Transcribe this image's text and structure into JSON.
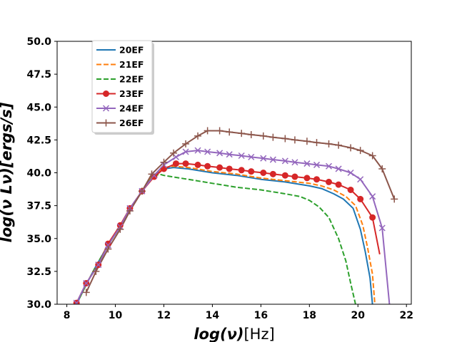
{
  "chart_data": {
    "type": "line",
    "title": "",
    "xlabel_math": "log(ν)",
    "xlabel_unit": "[Hz]",
    "ylabel_math": "log(ν Lν)",
    "ylabel_unit": "[ergs/s]",
    "xlim": [
      7.6,
      22.2
    ],
    "ylim": [
      30.0,
      50.0
    ],
    "xticks": [
      8,
      10,
      12,
      14,
      16,
      18,
      20,
      22
    ],
    "yticks": [
      30.0,
      32.5,
      35.0,
      37.5,
      40.0,
      42.5,
      45.0,
      47.5,
      50.0
    ],
    "xtick_labels": [
      "8",
      "10",
      "12",
      "14",
      "16",
      "18",
      "20",
      "22"
    ],
    "ytick_labels": [
      "30.0",
      "32.5",
      "35.0",
      "37.5",
      "40.0",
      "42.5",
      "45.0",
      "47.5",
      "50.0"
    ],
    "legend_position": "upper-left",
    "series": [
      {
        "name": "20EF",
        "color": "#1f77b4",
        "style": "solid",
        "marker": "none",
        "x": [
          8.4,
          8.8,
          9.2,
          9.7,
          10.2,
          10.6,
          11.1,
          11.5,
          12.0,
          12.4,
          13.0,
          14.0,
          15.0,
          16.0,
          17.0,
          18.0,
          18.5,
          19.0,
          19.4,
          19.8,
          20.1,
          20.3,
          20.5,
          20.6
        ],
        "y": [
          30.0,
          31.5,
          32.9,
          34.5,
          35.9,
          37.2,
          38.6,
          39.7,
          40.3,
          40.4,
          40.3,
          40.0,
          39.8,
          39.5,
          39.3,
          39.0,
          38.8,
          38.4,
          38.0,
          37.3,
          35.7,
          34.0,
          32.0,
          30.0
        ]
      },
      {
        "name": "21EF",
        "color": "#ff7f0e",
        "style": "dashed",
        "marker": "none",
        "x": [
          8.4,
          8.8,
          9.2,
          9.7,
          10.2,
          10.6,
          11.1,
          11.5,
          12.0,
          12.4,
          13.0,
          14.0,
          15.0,
          16.0,
          17.0,
          18.0,
          18.5,
          19.0,
          19.5,
          19.9,
          20.2,
          20.4,
          20.6,
          20.7
        ],
        "y": [
          30.0,
          31.5,
          32.9,
          34.5,
          35.9,
          37.2,
          38.6,
          39.7,
          40.4,
          40.5,
          40.4,
          40.1,
          39.9,
          39.6,
          39.4,
          39.2,
          39.0,
          38.7,
          38.2,
          37.5,
          36.0,
          34.3,
          32.3,
          30.0
        ]
      },
      {
        "name": "22EF",
        "color": "#2ca02c",
        "style": "dashed",
        "marker": "none",
        "x": [
          8.4,
          8.8,
          9.2,
          9.7,
          10.2,
          10.6,
          11.1,
          11.5,
          11.8,
          12.0,
          13.0,
          14.0,
          15.0,
          16.0,
          17.0,
          17.6,
          18.0,
          18.4,
          18.8,
          19.2,
          19.5,
          19.7,
          19.9
        ],
        "y": [
          30.0,
          31.5,
          32.9,
          34.5,
          35.9,
          37.2,
          38.6,
          39.6,
          39.9,
          39.8,
          39.5,
          39.2,
          38.9,
          38.7,
          38.4,
          38.2,
          37.9,
          37.4,
          36.6,
          35.0,
          33.3,
          31.6,
          30.0
        ]
      },
      {
        "name": "23EF",
        "color": "#d62728",
        "style": "solid",
        "marker": "circle",
        "x": [
          8.4,
          8.8,
          9.3,
          9.7,
          10.2,
          10.6,
          11.1,
          11.6,
          12.0,
          12.5,
          12.9,
          13.4,
          13.8,
          14.3,
          14.7,
          15.2,
          15.6,
          16.1,
          16.5,
          17.0,
          17.4,
          17.9,
          18.3,
          18.8,
          19.2,
          19.7,
          20.1,
          20.6,
          20.9
        ],
        "y": [
          30.1,
          31.6,
          33.0,
          34.6,
          36.0,
          37.3,
          38.6,
          39.7,
          40.3,
          40.7,
          40.7,
          40.6,
          40.5,
          40.4,
          40.3,
          40.2,
          40.1,
          40.0,
          39.9,
          39.8,
          39.7,
          39.6,
          39.5,
          39.3,
          39.1,
          38.7,
          38.0,
          36.6,
          33.8
        ],
        "marker_x": [
          8.4,
          8.8,
          9.3,
          9.7,
          10.2,
          10.6,
          11.1,
          11.6,
          12.0,
          12.5,
          12.9,
          13.4,
          13.8,
          14.3,
          14.7,
          15.2,
          15.6,
          16.1,
          16.5,
          17.0,
          17.4,
          17.9,
          18.3,
          18.8,
          19.2,
          19.7,
          20.1,
          20.6
        ],
        "marker_y": [
          30.1,
          31.6,
          33.0,
          34.6,
          36.0,
          37.3,
          38.6,
          39.7,
          40.3,
          40.7,
          40.7,
          40.6,
          40.5,
          40.4,
          40.3,
          40.2,
          40.1,
          40.0,
          39.9,
          39.8,
          39.7,
          39.6,
          39.5,
          39.3,
          39.1,
          38.7,
          38.0,
          36.6
        ]
      },
      {
        "name": "24EF",
        "color": "#9467bd",
        "style": "solid",
        "marker": "x",
        "x": [
          8.4,
          8.8,
          9.3,
          9.7,
          10.2,
          10.6,
          11.1,
          11.6,
          12.0,
          12.5,
          12.9,
          13.4,
          13.8,
          14.3,
          14.7,
          15.2,
          15.6,
          16.1,
          16.5,
          17.0,
          17.4,
          17.9,
          18.3,
          18.8,
          19.2,
          19.7,
          20.1,
          20.6,
          21.0,
          21.3
        ],
        "y": [
          30.1,
          31.6,
          33.0,
          34.5,
          35.9,
          37.3,
          38.6,
          39.8,
          40.6,
          41.2,
          41.6,
          41.7,
          41.6,
          41.5,
          41.4,
          41.3,
          41.2,
          41.1,
          41.0,
          40.9,
          40.8,
          40.7,
          40.6,
          40.5,
          40.3,
          40.0,
          39.5,
          38.2,
          35.8,
          30.0
        ],
        "marker_x": [
          8.4,
          8.8,
          9.3,
          9.7,
          10.2,
          10.6,
          11.1,
          11.6,
          12.0,
          12.5,
          12.9,
          13.4,
          13.8,
          14.3,
          14.7,
          15.2,
          15.6,
          16.1,
          16.5,
          17.0,
          17.4,
          17.9,
          18.3,
          18.8,
          19.2,
          19.7,
          20.1,
          20.6,
          21.0
        ],
        "marker_y": [
          30.1,
          31.6,
          33.0,
          34.5,
          35.9,
          37.3,
          38.6,
          39.8,
          40.6,
          41.2,
          41.6,
          41.7,
          41.6,
          41.5,
          41.4,
          41.3,
          41.2,
          41.1,
          41.0,
          40.9,
          40.8,
          40.7,
          40.6,
          40.5,
          40.3,
          40.0,
          39.5,
          38.2,
          35.8
        ]
      },
      {
        "name": "26EF",
        "color": "#8c564b",
        "style": "solid",
        "marker": "plus",
        "x": [
          8.8,
          9.2,
          9.7,
          10.2,
          10.6,
          11.1,
          11.5,
          12.0,
          12.4,
          12.9,
          13.4,
          13.8,
          14.3,
          14.7,
          15.2,
          15.6,
          16.1,
          16.5,
          17.0,
          17.4,
          17.9,
          18.3,
          18.8,
          19.2,
          19.7,
          20.1,
          20.6,
          21.0,
          21.5
        ],
        "y": [
          30.9,
          32.5,
          34.2,
          35.7,
          37.1,
          38.6,
          39.9,
          40.8,
          41.5,
          42.2,
          42.8,
          43.2,
          43.2,
          43.1,
          43.0,
          42.9,
          42.8,
          42.7,
          42.6,
          42.5,
          42.4,
          42.3,
          42.2,
          42.1,
          41.9,
          41.7,
          41.3,
          40.3,
          38.0
        ],
        "marker_x": [
          8.8,
          9.2,
          9.7,
          10.2,
          10.6,
          11.1,
          11.5,
          12.0,
          12.4,
          12.9,
          13.4,
          13.8,
          14.3,
          14.7,
          15.2,
          15.6,
          16.1,
          16.5,
          17.0,
          17.4,
          17.9,
          18.3,
          18.8,
          19.2,
          19.7,
          20.1,
          20.6,
          21.0,
          21.5
        ],
        "marker_y": [
          30.9,
          32.5,
          34.2,
          35.7,
          37.1,
          38.6,
          39.9,
          40.8,
          41.5,
          42.2,
          42.8,
          43.2,
          43.2,
          43.1,
          43.0,
          42.9,
          42.8,
          42.7,
          42.6,
          42.5,
          42.4,
          42.3,
          42.2,
          42.1,
          41.9,
          41.7,
          41.3,
          40.3,
          38.0
        ]
      }
    ]
  }
}
